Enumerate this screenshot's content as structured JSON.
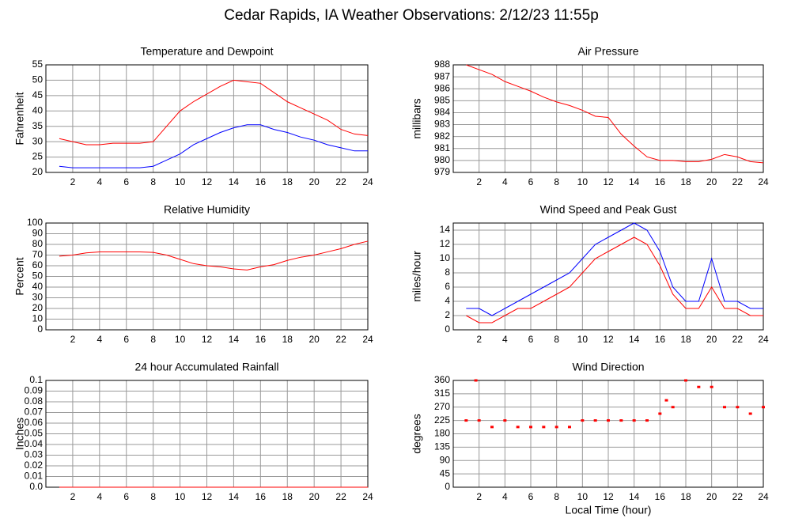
{
  "title": "Cedar Rapids, IA Weather Observations: 2/12/23 11:55p",
  "chart_data": [
    {
      "type": "line",
      "title": "Temperature and Dewpoint",
      "ylabel": "Fahrenheit",
      "x": [
        1,
        2,
        3,
        4,
        5,
        6,
        7,
        8,
        9,
        10,
        11,
        12,
        13,
        14,
        15,
        16,
        17,
        18,
        19,
        20,
        21,
        22,
        23,
        24
      ],
      "series": [
        {
          "color": "#ff0000",
          "values": [
            31,
            30,
            29,
            29,
            29.5,
            29.5,
            29.5,
            30,
            35,
            40,
            43,
            45.5,
            48,
            50,
            49.5,
            49,
            46,
            43,
            41,
            39,
            37,
            34,
            32.5,
            32
          ]
        },
        {
          "color": "#0000ff",
          "values": [
            22,
            21.5,
            21.5,
            21.5,
            21.5,
            21.5,
            21.5,
            22,
            24,
            26,
            29,
            31,
            33,
            34.5,
            35.5,
            35.5,
            34,
            33,
            31.5,
            30.5,
            29,
            28,
            27,
            27
          ]
        }
      ],
      "xlim": [
        0,
        24
      ],
      "xticks": [
        2,
        4,
        6,
        8,
        10,
        12,
        14,
        16,
        18,
        20,
        22,
        24
      ],
      "ylim": [
        20,
        55
      ],
      "yticks": [
        20,
        25,
        30,
        35,
        40,
        45,
        50,
        55
      ],
      "grid": true
    },
    {
      "type": "line",
      "title": "Air Pressure",
      "ylabel": "millibars",
      "x": [
        1,
        2,
        3,
        4,
        5,
        6,
        7,
        8,
        9,
        10,
        11,
        12,
        13,
        14,
        15,
        16,
        17,
        18,
        19,
        20,
        21,
        22,
        23,
        24
      ],
      "series": [
        {
          "color": "#ff0000",
          "values": [
            988,
            987.6,
            987.2,
            986.6,
            986.2,
            985.8,
            985.3,
            984.9,
            984.6,
            984.2,
            983.7,
            983.6,
            982.2,
            981.2,
            980.3,
            980,
            980,
            979.9,
            979.9,
            980.1,
            980.5,
            980.3,
            979.9,
            979.8
          ]
        }
      ],
      "xlim": [
        0,
        24
      ],
      "xticks": [
        2,
        4,
        6,
        8,
        10,
        12,
        14,
        16,
        18,
        20,
        22,
        24
      ],
      "ylim": [
        979,
        988
      ],
      "yticks": [
        979,
        980,
        981,
        982,
        983,
        984,
        985,
        986,
        987,
        988
      ],
      "grid": true
    },
    {
      "type": "line",
      "title": "Relative Humidity",
      "ylabel": "Percent",
      "x": [
        1,
        2,
        3,
        4,
        5,
        6,
        7,
        8,
        9,
        10,
        11,
        12,
        13,
        14,
        15,
        16,
        17,
        18,
        19,
        20,
        21,
        22,
        23,
        24
      ],
      "series": [
        {
          "color": "#ff0000",
          "values": [
            69,
            70,
            72,
            73,
            73,
            73,
            73,
            72.5,
            70,
            66,
            62,
            60,
            59,
            57,
            56,
            59,
            61,
            65,
            68,
            70,
            73,
            76,
            80,
            83
          ]
        }
      ],
      "xlim": [
        0,
        24
      ],
      "xticks": [
        2,
        4,
        6,
        8,
        10,
        12,
        14,
        16,
        18,
        20,
        22,
        24
      ],
      "ylim": [
        0,
        100
      ],
      "yticks": [
        0,
        10,
        20,
        30,
        40,
        50,
        60,
        70,
        80,
        90,
        100
      ],
      "grid": true
    },
    {
      "type": "line",
      "title": "Wind Speed and Peak Gust",
      "ylabel": "miles/hour",
      "x": [
        1,
        2,
        3,
        4,
        5,
        6,
        7,
        8,
        9,
        10,
        11,
        12,
        13,
        14,
        15,
        16,
        17,
        18,
        19,
        20,
        21,
        22,
        23,
        24
      ],
      "series": [
        {
          "color": "#0000ff",
          "values": [
            3,
            3,
            2,
            3,
            4,
            5,
            6,
            7,
            8,
            10,
            12,
            13,
            14,
            15,
            14,
            11,
            6,
            4,
            4,
            10,
            4,
            4,
            3,
            3
          ]
        },
        {
          "color": "#ff0000",
          "values": [
            2,
            1,
            1,
            2,
            3,
            3,
            4,
            5,
            6,
            8,
            10,
            11,
            12,
            13,
            12,
            9,
            5,
            3,
            3,
            6,
            3,
            3,
            2,
            2
          ]
        }
      ],
      "xlim": [
        0,
        24
      ],
      "xticks": [
        2,
        4,
        6,
        8,
        10,
        12,
        14,
        16,
        18,
        20,
        22,
        24
      ],
      "ylim": [
        0,
        15
      ],
      "yticks": [
        0,
        2,
        4,
        6,
        8,
        10,
        12,
        14
      ],
      "grid": true
    },
    {
      "type": "line",
      "title": "24 hour Accumulated Rainfall",
      "ylabel": "Inches",
      "x": [
        1,
        2,
        3,
        4,
        5,
        6,
        7,
        8,
        9,
        10,
        11,
        12,
        13,
        14,
        15,
        16,
        17,
        18,
        19,
        20,
        21,
        22,
        23,
        24
      ],
      "series": [
        {
          "color": "#ff0000",
          "values": [
            0,
            0,
            0,
            0,
            0,
            0,
            0,
            0,
            0,
            0,
            0,
            0,
            0,
            0,
            0,
            0,
            0,
            0,
            0,
            0,
            0,
            0,
            0,
            0
          ]
        }
      ],
      "xlim": [
        0,
        24
      ],
      "xticks": [
        2,
        4,
        6,
        8,
        10,
        12,
        14,
        16,
        18,
        20,
        22,
        24
      ],
      "ylim": [
        0,
        0.1
      ],
      "yticks": [
        {
          "value": 0,
          "label": "0.0"
        },
        0.01,
        0.02,
        0.03,
        0.04,
        0.05,
        0.06,
        0.07,
        0.08,
        0.09,
        0.1
      ],
      "grid": true
    },
    {
      "type": "scatter",
      "title": "Wind Direction",
      "ylabel": "degrees",
      "xlabel": "Local Time (hour)",
      "x": [
        1,
        1.75,
        2,
        3,
        4,
        5,
        6,
        7,
        8,
        9,
        10,
        11,
        12,
        13,
        14,
        15,
        16,
        16.5,
        17,
        18,
        19,
        20,
        21,
        22,
        23,
        24
      ],
      "series": [
        {
          "color": "#ff0000",
          "values": [
            225,
            360,
            225,
            203,
            225,
            203,
            203,
            203,
            203,
            203,
            225,
            225,
            225,
            225,
            225,
            225,
            248,
            293,
            270,
            360,
            338,
            338,
            270,
            270,
            248,
            270
          ]
        }
      ],
      "xlim": [
        0,
        24
      ],
      "xticks": [
        2,
        4,
        6,
        8,
        10,
        12,
        14,
        16,
        18,
        20,
        22,
        24
      ],
      "ylim": [
        0,
        360
      ],
      "yticks": [
        0,
        45,
        90,
        135,
        180,
        225,
        270,
        315,
        360
      ],
      "grid": true
    }
  ]
}
